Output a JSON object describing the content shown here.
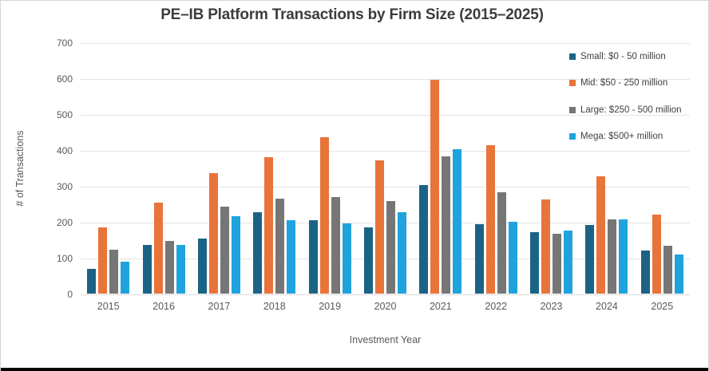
{
  "chart_data": {
    "type": "bar",
    "title": "PE–IB Platform Transactions by Firm Size (2015–2025)",
    "xlabel": "Investment Year",
    "ylabel": "# of Transactions",
    "ylim": [
      0,
      700
    ],
    "ytick_step": 100,
    "grid": true,
    "legend_position": "top-right",
    "categories": [
      "2015",
      "2016",
      "2017",
      "2018",
      "2019",
      "2020",
      "2021",
      "2022",
      "2023",
      "2024",
      "2025"
    ],
    "series": [
      {
        "name": "Small: $0 - 50 million",
        "color": "#1B6384",
        "values": [
          68,
          136,
          153,
          227,
          205,
          184,
          302,
          193,
          172,
          192,
          121
        ]
      },
      {
        "name": "Mid: $50 - 250 million",
        "color": "#E8743A",
        "values": [
          185,
          254,
          335,
          380,
          435,
          371,
          595,
          413,
          262,
          326,
          219
        ]
      },
      {
        "name": "Large: $250 - 500 million",
        "color": "#767676",
        "values": [
          122,
          146,
          242,
          264,
          269,
          257,
          383,
          283,
          167,
          207,
          134
        ]
      },
      {
        "name": "Mega: $500+ million",
        "color": "#1FA3DC",
        "values": [
          88,
          136,
          215,
          205,
          196,
          227,
          403,
          199,
          176,
          207,
          110
        ]
      }
    ]
  }
}
